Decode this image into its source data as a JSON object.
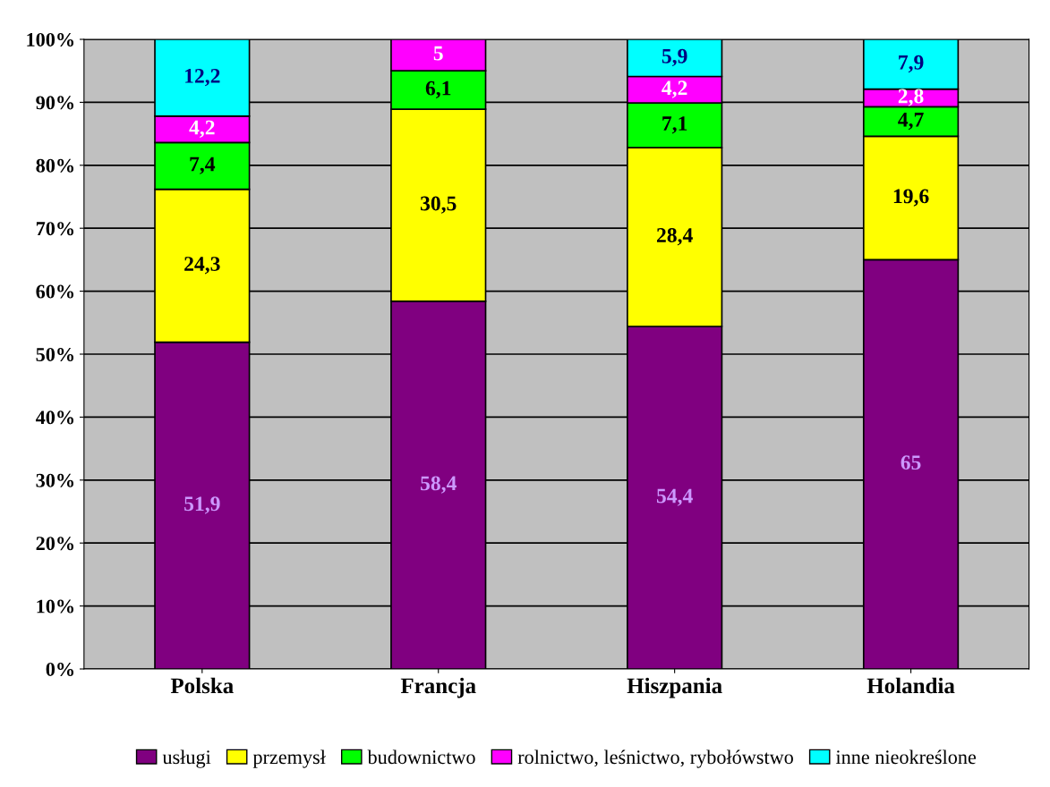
{
  "chart_data": {
    "type": "bar",
    "stacked": true,
    "categories": [
      "Polska",
      "Francja",
      "Hiszpania",
      "Holandia"
    ],
    "series": [
      {
        "name": "usługi",
        "color": "#800080",
        "values": [
          51.9,
          58.4,
          54.4,
          65
        ],
        "value_labels": [
          "51,9",
          "58,4",
          "54,4",
          "65"
        ]
      },
      {
        "name": "przemysł",
        "color": "#ffff00",
        "values": [
          24.3,
          30.5,
          28.4,
          19.6
        ],
        "value_labels": [
          "24,3",
          "30,5",
          "28,4",
          "19,6"
        ]
      },
      {
        "name": "budownictwo",
        "color": "#00ff00",
        "values": [
          7.4,
          6.1,
          7.1,
          4.7
        ],
        "value_labels": [
          "7,4",
          "6,1",
          "7,1",
          "4,7"
        ]
      },
      {
        "name": "rolnictwo, leśnictwo, rybołówstwo",
        "color": "#ff00ff",
        "values": [
          4.2,
          5,
          4.2,
          2.8
        ],
        "value_labels": [
          "4,2",
          "5",
          "4,2",
          "2,8"
        ]
      },
      {
        "name": "inne nieokreślone",
        "color": "#00ffff",
        "values": [
          12.2,
          null,
          5.9,
          7.9
        ],
        "value_labels": [
          "12,2",
          null,
          "5,9",
          "7,9"
        ]
      }
    ],
    "ylim": [
      0,
      100
    ],
    "yticks": [
      {
        "value": 0,
        "label": "0%"
      },
      {
        "value": 10,
        "label": "10%"
      },
      {
        "value": 20,
        "label": "20%"
      },
      {
        "value": 30,
        "label": "30%"
      },
      {
        "value": 40,
        "label": "40%"
      },
      {
        "value": 50,
        "label": "50%"
      },
      {
        "value": 60,
        "label": "60%"
      },
      {
        "value": 70,
        "label": "70%"
      },
      {
        "value": 80,
        "label": "80%"
      },
      {
        "value": 90,
        "label": "90%"
      },
      {
        "value": 100,
        "label": "100%"
      }
    ],
    "grid": "y",
    "legend": "bottom"
  }
}
